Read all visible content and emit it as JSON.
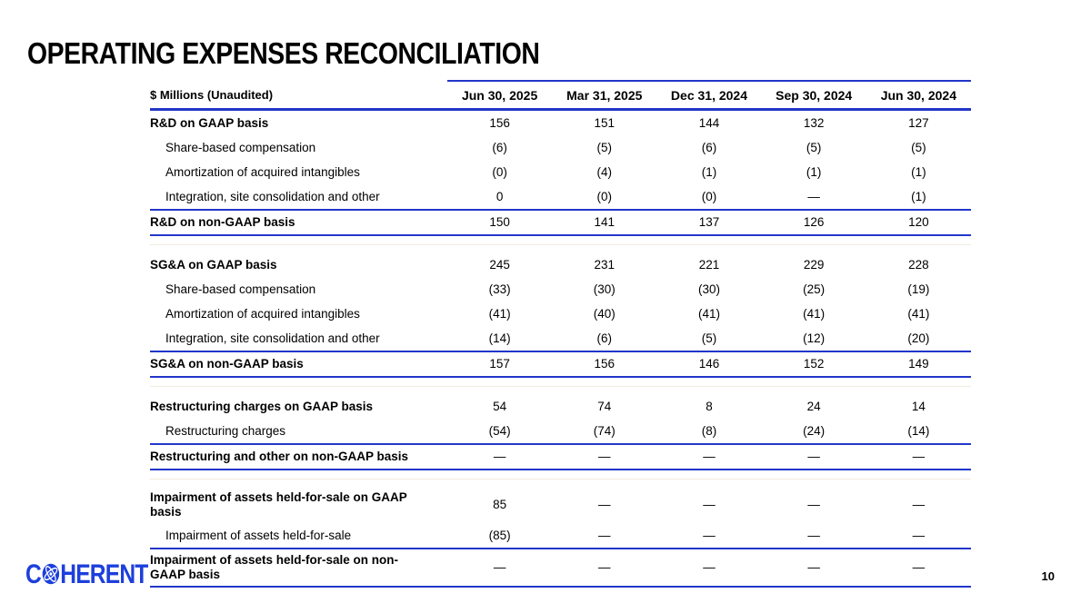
{
  "slide": {
    "title": "OPERATING EXPENSES RECONCILIATION",
    "page_number": "10",
    "logo": {
      "prefix": "C",
      "suffix": "HERENT",
      "icon": "atom-icon"
    }
  },
  "colors": {
    "rule_blue": "#2236c9",
    "logo_blue": "#1c3fdc",
    "faint_divider": "#f2ecdf"
  },
  "table": {
    "unit_label": "$ Millions (Unaudited)",
    "columns": [
      "Jun 30, 2025",
      "Mar 31, 2025",
      "Dec 31, 2024",
      "Sep 30, 2024",
      "Jun 30, 2024"
    ],
    "sections": [
      {
        "rows": [
          {
            "label": "R&D on GAAP basis",
            "style": "total",
            "values": [
              "156",
              "151",
              "144",
              "132",
              "127"
            ]
          },
          {
            "label": "Share-based compensation",
            "style": "detail",
            "values": [
              "(6)",
              "(5)",
              "(6)",
              "(5)",
              "(5)"
            ]
          },
          {
            "label": "Amortization of acquired intangibles",
            "style": "detail",
            "values": [
              "(0)",
              "(4)",
              "(1)",
              "(1)",
              "(1)"
            ]
          },
          {
            "label": "Integration, site consolidation and other",
            "style": "detail",
            "values": [
              "0",
              "(0)",
              "(0)",
              "—",
              "(1)"
            ]
          },
          {
            "label": "R&D on non-GAAP basis",
            "style": "subtotal",
            "values": [
              "150",
              "141",
              "137",
              "126",
              "120"
            ]
          }
        ]
      },
      {
        "rows": [
          {
            "label": "SG&A on GAAP basis",
            "style": "total",
            "values": [
              "245",
              "231",
              "221",
              "229",
              "228"
            ]
          },
          {
            "label": "Share-based compensation",
            "style": "detail",
            "values": [
              "(33)",
              "(30)",
              "(30)",
              "(25)",
              "(19)"
            ]
          },
          {
            "label": "Amortization of acquired intangibles",
            "style": "detail",
            "values": [
              "(41)",
              "(40)",
              "(41)",
              "(41)",
              "(41)"
            ]
          },
          {
            "label": "Integration, site consolidation and other",
            "style": "detail",
            "values": [
              "(14)",
              "(6)",
              "(5)",
              "(12)",
              "(20)"
            ]
          },
          {
            "label": "SG&A on non-GAAP basis",
            "style": "subtotal",
            "values": [
              "157",
              "156",
              "146",
              "152",
              "149"
            ]
          }
        ]
      },
      {
        "rows": [
          {
            "label": "Restructuring charges on GAAP basis",
            "style": "total",
            "values": [
              "54",
              "74",
              "8",
              "24",
              "14"
            ]
          },
          {
            "label": "Restructuring charges",
            "style": "detail",
            "values": [
              "(54)",
              "(74)",
              "(8)",
              "(24)",
              "(14)"
            ]
          },
          {
            "label": "Restructuring and other on non-GAAP basis",
            "style": "subtotal",
            "values": [
              "—",
              "—",
              "—",
              "—",
              "—"
            ]
          }
        ]
      },
      {
        "rows": [
          {
            "label": "Impairment of assets held-for-sale on GAAP basis",
            "style": "total",
            "tall": true,
            "values": [
              "85",
              "—",
              "—",
              "—",
              "—"
            ]
          },
          {
            "label": "Impairment of assets held-for-sale",
            "style": "detail",
            "values": [
              "(85)",
              "—",
              "—",
              "—",
              "—"
            ]
          },
          {
            "label": "Impairment of assets held-for-sale on non-GAAP basis",
            "style": "subtotal",
            "tall": true,
            "values": [
              "—",
              "—",
              "—",
              "—",
              "—"
            ]
          }
        ]
      }
    ]
  }
}
